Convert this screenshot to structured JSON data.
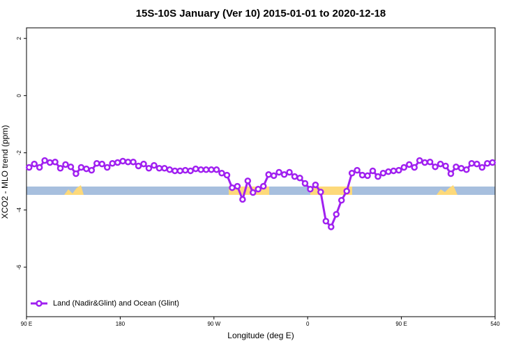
{
  "chart_data": {
    "type": "line",
    "title": "15S-10S January (Ver 10)   2015-01-01 to 2020-12-18",
    "x_label": "Longitude (deg E)",
    "y_label": "XCO2 - MLO trend (ppm)",
    "xlim": [
      90,
      540
    ],
    "xticks": [
      {
        "value": 90,
        "label": "90 E"
      },
      180,
      {
        "value": 270,
        "label": "90 W"
      },
      {
        "value": 360,
        "label": "0"
      },
      {
        "value": 450,
        "label": "90 E"
      },
      540
    ],
    "ylim": [
      -7.73,
      2.37
    ],
    "yticks": [
      2,
      0,
      -2,
      -4,
      -6
    ],
    "legend": "bottom-left",
    "x": [
      92.5,
      97.5,
      102.5,
      107.5,
      112.5,
      117.5,
      122.5,
      127.5,
      132.5,
      137.5,
      142.5,
      147.5,
      152.5,
      157.5,
      162.5,
      167.5,
      172.5,
      177.5,
      182.5,
      187.5,
      192.5,
      197.5,
      202.5,
      207.5,
      212.5,
      217.5,
      222.5,
      227.5,
      232.5,
      237.5,
      242.5,
      247.5,
      252.5,
      257.5,
      262.5,
      267.5,
      272.5,
      277.5,
      282.5,
      287.5,
      292.5,
      297.5,
      302.5,
      307.5,
      312.5,
      317.5,
      322.5,
      327.5,
      332.5,
      337.5,
      342.5,
      347.5,
      352.5,
      357.5,
      362.5,
      367.5,
      372.5,
      377.5,
      382.5,
      387.5,
      392.5,
      397.5,
      402.5,
      407.5,
      412.5,
      417.5,
      422.5,
      427.5,
      432.5,
      437.5,
      442.5,
      447.5,
      452.5,
      457.5,
      462.5,
      467.5,
      472.5,
      477.5,
      482.5,
      487.5,
      492.5,
      497.5,
      502.5,
      507.5,
      512.5,
      517.5,
      522.5,
      527.5,
      532.5,
      537.5
    ],
    "series": [
      {
        "name": "Land (Nadir&Glint) and Ocean (Glint)",
        "color": "#a020f0",
        "values": [
          -2.51,
          -2.39,
          -2.51,
          -2.27,
          -2.34,
          -2.32,
          -2.54,
          -2.41,
          -2.49,
          -2.73,
          -2.51,
          -2.56,
          -2.61,
          -2.37,
          -2.39,
          -2.51,
          -2.37,
          -2.34,
          -2.29,
          -2.32,
          -2.32,
          -2.46,
          -2.39,
          -2.54,
          -2.44,
          -2.54,
          -2.54,
          -2.59,
          -2.63,
          -2.63,
          -2.61,
          -2.63,
          -2.56,
          -2.59,
          -2.59,
          -2.59,
          -2.59,
          -2.71,
          -2.78,
          -3.22,
          -3.17,
          -3.63,
          -2.98,
          -3.39,
          -3.27,
          -3.17,
          -2.76,
          -2.8,
          -2.68,
          -2.76,
          -2.68,
          -2.83,
          -2.88,
          -3.07,
          -3.27,
          -3.12,
          -3.37,
          -4.39,
          -4.59,
          -4.15,
          -3.66,
          -3.34,
          -2.71,
          -2.61,
          -2.78,
          -2.8,
          -2.63,
          -2.83,
          -2.71,
          -2.66,
          -2.63,
          -2.61,
          -2.51,
          -2.41,
          -2.51,
          -2.27,
          -2.34,
          -2.32,
          -2.49,
          -2.39,
          -2.46,
          -2.73,
          -2.49,
          -2.54,
          -2.59,
          -2.37,
          -2.39,
          -2.51,
          -2.37,
          -2.34
        ]
      }
    ]
  }
}
